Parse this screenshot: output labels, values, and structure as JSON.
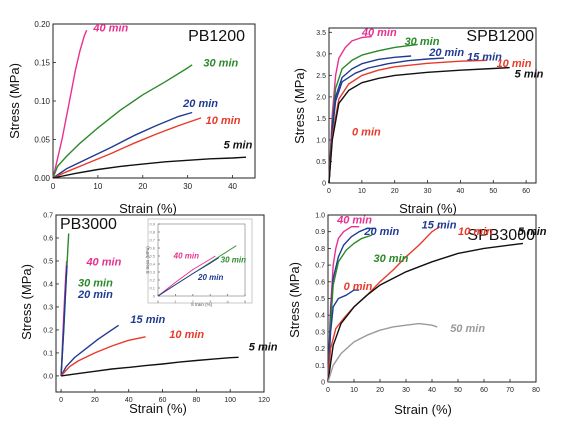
{
  "colors": {
    "40 min": "#e8308f",
    "30 min": "#2a8a2a",
    "20 min": "#1f3a93",
    "15 min": "#1f3a93",
    "10 min": "#e83a2a",
    "5 min": "#111111",
    "0 min": "#e83a2a",
    "50 min": "#9a9a9a"
  },
  "chart_data": [
    {
      "type": "line",
      "title": "PB1200",
      "xlabel": "Strain (%)",
      "ylabel": "Stress (MPa)",
      "xlim": [
        0,
        45
      ],
      "ylim": [
        0,
        0.2
      ],
      "xticks": [
        0,
        10,
        20,
        30,
        40
      ],
      "yticks": [
        0,
        0.05,
        0.1,
        0.15,
        0.2
      ],
      "ytick_labels": [
        "0.00",
        "0.05",
        "0.10",
        "0.15",
        "0.20"
      ],
      "series": [
        {
          "name": "40 min",
          "x": [
            0,
            1,
            2,
            3,
            4,
            5,
            6,
            7,
            7.5
          ],
          "y": [
            0,
            0.025,
            0.05,
            0.08,
            0.11,
            0.14,
            0.165,
            0.185,
            0.192
          ]
        },
        {
          "name": "30 min",
          "x": [
            0,
            1,
            3,
            6,
            10,
            15,
            20,
            25,
            30,
            31
          ],
          "y": [
            0,
            0.015,
            0.028,
            0.045,
            0.065,
            0.088,
            0.108,
            0.125,
            0.143,
            0.147
          ]
        },
        {
          "name": "20 min",
          "x": [
            0,
            3,
            8,
            13,
            18,
            23,
            28,
            31
          ],
          "y": [
            0,
            0.012,
            0.026,
            0.04,
            0.055,
            0.068,
            0.08,
            0.085
          ]
        },
        {
          "name": "10 min",
          "x": [
            0,
            3,
            8,
            13,
            18,
            23,
            28,
            33
          ],
          "y": [
            0,
            0.008,
            0.02,
            0.032,
            0.045,
            0.057,
            0.068,
            0.078
          ]
        },
        {
          "name": "5 min",
          "x": [
            0,
            5,
            10,
            15,
            20,
            25,
            30,
            35,
            40,
            43
          ],
          "y": [
            0,
            0.006,
            0.011,
            0.015,
            0.018,
            0.021,
            0.023,
            0.025,
            0.026,
            0.027
          ]
        }
      ],
      "annotations": [
        {
          "text": "40 min",
          "series": "40 min",
          "x": 9,
          "y": 0.19
        },
        {
          "text": "30 min",
          "series": "30 min",
          "x": 33.5,
          "y": 0.145
        },
        {
          "text": "20 min",
          "series": "20 min",
          "x": 29,
          "y": 0.092
        },
        {
          "text": "10 min",
          "series": "10 min",
          "x": 34,
          "y": 0.07
        },
        {
          "text": "5 min",
          "series": "5 min",
          "x": 38,
          "y": 0.038
        }
      ]
    },
    {
      "type": "line",
      "title": "SPB1200",
      "xlabel": "Strain (%)",
      "ylabel": "Stress (MPa)",
      "xlim": [
        0,
        63
      ],
      "ylim": [
        0,
        3.6
      ],
      "xticks": [
        0,
        10,
        20,
        30,
        40,
        50,
        60
      ],
      "yticks": [
        0,
        0.5,
        1.0,
        1.5,
        2.0,
        2.5,
        3.0,
        3.5
      ],
      "ytick_labels": [
        "0",
        "0.5",
        "1.0",
        "1.5",
        "2.0",
        "2.5",
        "3.0",
        "3.5"
      ],
      "series": [
        {
          "name": "40 min",
          "x": [
            0,
            1,
            2,
            3,
            5,
            7,
            10,
            13
          ],
          "y": [
            0,
            1.6,
            2.5,
            2.9,
            3.15,
            3.3,
            3.38,
            3.4
          ]
        },
        {
          "name": "30 min",
          "x": [
            0,
            1,
            2,
            4,
            7,
            10,
            15,
            20,
            27
          ],
          "y": [
            0,
            1.4,
            2.2,
            2.65,
            2.85,
            2.97,
            3.07,
            3.15,
            3.22
          ]
        },
        {
          "name": "20 min",
          "x": [
            0,
            1,
            2,
            4,
            7,
            10,
            15,
            20,
            25
          ],
          "y": [
            0,
            1.3,
            2.0,
            2.45,
            2.65,
            2.77,
            2.87,
            2.92,
            2.95
          ]
        },
        {
          "name": "15 min",
          "x": [
            0,
            1,
            2,
            4,
            8,
            12,
            18,
            24,
            30,
            35
          ],
          "y": [
            0,
            1.2,
            1.9,
            2.35,
            2.55,
            2.67,
            2.77,
            2.84,
            2.88,
            2.9
          ]
        },
        {
          "name": "10 min",
          "x": [
            0,
            1,
            3,
            6,
            10,
            15,
            20,
            30,
            40,
            48
          ],
          "y": [
            0,
            1.1,
            1.95,
            2.3,
            2.5,
            2.62,
            2.7,
            2.78,
            2.83,
            2.85
          ]
        },
        {
          "name": "5 min",
          "x": [
            0,
            1,
            3,
            6,
            10,
            15,
            20,
            30,
            40,
            50,
            55
          ],
          "y": [
            0,
            1.0,
            1.85,
            2.15,
            2.33,
            2.43,
            2.5,
            2.57,
            2.62,
            2.66,
            2.68
          ]
        }
      ],
      "annotations": [
        {
          "text": "40 min",
          "series": "40 min",
          "x": 10,
          "y": 3.42
        },
        {
          "text": "30 min",
          "series": "30 min",
          "x": 23,
          "y": 3.2
        },
        {
          "text": "20 min",
          "series": "20 min",
          "x": 30.5,
          "y": 2.95
        },
        {
          "text": "15 min",
          "series": "15 min",
          "x": 42,
          "y": 2.85
        },
        {
          "text": "10 min",
          "series": "10 min",
          "x": 51,
          "y": 2.7
        },
        {
          "text": "5 min",
          "series": "5 min",
          "x": 56.5,
          "y": 2.45
        },
        {
          "text": "0 min",
          "series": "0 min",
          "x": 7,
          "y": 1.1
        }
      ]
    },
    {
      "type": "line",
      "title": "PB3000",
      "xlabel": "Strain (%)",
      "ylabel": "Stress (MPa)",
      "xlim": [
        -3,
        120
      ],
      "ylim": [
        -0.07,
        0.7
      ],
      "xticks": [
        0,
        20,
        40,
        60,
        80,
        100,
        120
      ],
      "yticks": [
        0,
        0.1,
        0.2,
        0.3,
        0.4,
        0.5,
        0.6,
        0.7
      ],
      "ytick_labels": [
        "0.0",
        "0.1",
        "0.2",
        "0.3",
        "0.4",
        "0.5",
        "0.6",
        "0.7"
      ],
      "series": [
        {
          "name": "40 min",
          "x": [
            0,
            0.5,
            1,
            1.5,
            2,
            2.5,
            3,
            3.3
          ],
          "y": [
            0,
            0.08,
            0.17,
            0.25,
            0.33,
            0.4,
            0.46,
            0.5
          ]
        },
        {
          "name": "30 min",
          "x": [
            0,
            0.8,
            1.6,
            2.4,
            3.2,
            4,
            4.5
          ],
          "y": [
            0,
            0.1,
            0.2,
            0.32,
            0.44,
            0.55,
            0.62
          ]
        },
        {
          "name": "20 min",
          "x": [
            0,
            0.8,
            1.5,
            2.2,
            3,
            3.5
          ],
          "y": [
            0,
            0.1,
            0.2,
            0.3,
            0.42,
            0.48
          ]
        },
        {
          "name": "15 min",
          "x": [
            0,
            3,
            8,
            15,
            22,
            28,
            34
          ],
          "y": [
            0,
            0.04,
            0.08,
            0.12,
            0.16,
            0.19,
            0.22
          ]
        },
        {
          "name": "10 min",
          "x": [
            0,
            5,
            10,
            20,
            30,
            40,
            50
          ],
          "y": [
            0,
            0.04,
            0.065,
            0.1,
            0.13,
            0.155,
            0.17
          ]
        },
        {
          "name": "5 min",
          "x": [
            0,
            10,
            20,
            30,
            40,
            50,
            60,
            70,
            80,
            90,
            100,
            105
          ],
          "y": [
            0,
            0.01,
            0.02,
            0.03,
            0.037,
            0.045,
            0.052,
            0.06,
            0.067,
            0.073,
            0.079,
            0.081
          ]
        }
      ],
      "annotations": [
        {
          "text": "40 min",
          "series": "40 min",
          "x": 15,
          "y": 0.48
        },
        {
          "text": "30 min",
          "series": "30 min",
          "x": 10,
          "y": 0.39
        },
        {
          "text": "20 min",
          "series": "20 min",
          "x": 10,
          "y": 0.34
        },
        {
          "text": "15 min",
          "series": "15 min",
          "x": 41,
          "y": 0.23
        },
        {
          "text": "10 min",
          "series": "10 min",
          "x": 64,
          "y": 0.165
        },
        {
          "text": "5 min",
          "series": "5 min",
          "x": 111,
          "y": 0.11
        }
      ],
      "inset": {
        "xlabel": "S train (%)",
        "ylabel": "S tress (MPa)",
        "xlim": [
          0,
          5
        ],
        "ylim": [
          0,
          0.9
        ],
        "xticks": [
          0,
          1,
          2,
          3,
          4,
          5
        ],
        "yticks": [
          0,
          0.1,
          0.2,
          0.3,
          0.4,
          0.5,
          0.6,
          0.7,
          0.8,
          0.9
        ],
        "ytick_labels": [
          "0",
          "0.1",
          "0.2",
          "0.3",
          "0.4",
          "0.5",
          "0.6",
          "0.7",
          "0.8",
          "0.9"
        ],
        "series": [
          {
            "name": "40 min",
            "x": [
              0,
              1,
              2,
              3,
              3.3
            ],
            "y": [
              0,
              0.17,
              0.33,
              0.46,
              0.5
            ]
          },
          {
            "name": "30 min",
            "x": [
              0,
              1,
              2,
              3,
              4,
              4.5
            ],
            "y": [
              0,
              0.14,
              0.28,
              0.42,
              0.56,
              0.63
            ]
          },
          {
            "name": "20 min",
            "x": [
              0,
              1,
              2,
              3,
              3.5
            ],
            "y": [
              0,
              0.14,
              0.28,
              0.41,
              0.48
            ]
          }
        ],
        "annotations": [
          {
            "text": "40 min",
            "series": "40 min",
            "x": 0.9,
            "y": 0.47
          },
          {
            "text": "30 min",
            "series": "30 min",
            "x": 3.6,
            "y": 0.42
          },
          {
            "text": "20 min",
            "series": "20 min",
            "x": 2.3,
            "y": 0.2
          }
        ]
      }
    },
    {
      "type": "line",
      "title": "SPB3000",
      "xlabel": "Strain (%)",
      "ylabel": "Stress (MPa)",
      "xlim": [
        0,
        80
      ],
      "ylim": [
        0,
        1.0
      ],
      "xticks": [
        0,
        10,
        20,
        30,
        40,
        50,
        60,
        70,
        80
      ],
      "yticks": [
        0,
        0.1,
        0.2,
        0.3,
        0.4,
        0.5,
        0.6,
        0.7,
        0.8,
        0.9,
        1.0
      ],
      "ytick_labels": [
        "0",
        "0.1",
        "0.2",
        "0.3",
        "0.4",
        "0.5",
        "0.6",
        "0.7",
        "0.8",
        "0.9",
        "1.0"
      ],
      "series": [
        {
          "name": "40 min",
          "x": [
            0,
            1,
            2,
            3,
            4,
            6,
            9,
            12
          ],
          "y": [
            0,
            0.45,
            0.7,
            0.8,
            0.86,
            0.9,
            0.93,
            0.93
          ]
        },
        {
          "name": "20 min",
          "x": [
            0,
            1,
            2,
            4,
            6,
            9,
            12,
            15,
            18
          ],
          "y": [
            0,
            0.4,
            0.62,
            0.75,
            0.82,
            0.87,
            0.9,
            0.92,
            0.92
          ]
        },
        {
          "name": "30 min",
          "x": [
            0,
            1,
            2,
            4,
            7,
            10,
            13,
            17
          ],
          "y": [
            0,
            0.35,
            0.58,
            0.72,
            0.79,
            0.83,
            0.86,
            0.88
          ]
        },
        {
          "name": "15 min",
          "x": [
            0,
            1,
            2,
            4,
            7,
            10,
            12
          ],
          "y": [
            0,
            0.3,
            0.45,
            0.5,
            0.52,
            0.55,
            0.55
          ]
        },
        {
          "name": "10 min",
          "x": [
            0,
            1,
            3,
            6,
            10,
            15,
            20,
            25,
            30,
            35,
            40,
            43
          ],
          "y": [
            0,
            0.2,
            0.32,
            0.38,
            0.45,
            0.52,
            0.6,
            0.67,
            0.75,
            0.82,
            0.9,
            0.93
          ]
        },
        {
          "name": "5 min",
          "x": [
            0,
            2,
            5,
            10,
            15,
            20,
            30,
            40,
            50,
            60,
            70,
            75
          ],
          "y": [
            0,
            0.22,
            0.35,
            0.45,
            0.52,
            0.58,
            0.66,
            0.72,
            0.77,
            0.8,
            0.82,
            0.83
          ]
        },
        {
          "name": "50 min",
          "x": [
            0,
            2,
            5,
            10,
            15,
            20,
            25,
            30,
            35,
            40,
            42
          ],
          "y": [
            0,
            0.1,
            0.17,
            0.24,
            0.28,
            0.31,
            0.33,
            0.34,
            0.35,
            0.34,
            0.33
          ]
        }
      ],
      "annotations": [
        {
          "text": "40 min",
          "series": "40 min",
          "x": 3.5,
          "y": 0.95
        },
        {
          "text": "20 min",
          "series": "20 min",
          "x": 14,
          "y": 0.88
        },
        {
          "text": "30 min",
          "series": "30 min",
          "x": 17.5,
          "y": 0.72
        },
        {
          "text": "15 min",
          "series": "15 min",
          "x": 36,
          "y": 0.92
        },
        {
          "text": "10 min",
          "series": "10 min",
          "x": 50,
          "y": 0.88
        },
        {
          "text": "5 min",
          "series": "5 min",
          "x": 73,
          "y": 0.88
        },
        {
          "text": "0 min",
          "series": "0 min",
          "x": 6,
          "y": 0.55
        },
        {
          "text": "50 min",
          "series": "50 min",
          "x": 47,
          "y": 0.3
        }
      ]
    }
  ]
}
